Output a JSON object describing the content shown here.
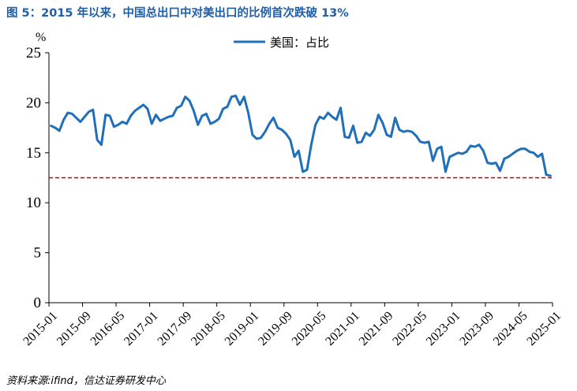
{
  "title": "图 5：2015 年以来，中国总出口中对美出口的比例首次跌破 13%",
  "source": "资料来源:ifind，信达证券研发中心",
  "chart_data": {
    "type": "line",
    "unit": "%",
    "ylim": [
      0,
      25
    ],
    "yticks": [
      "0",
      "5",
      "10",
      "15",
      "20",
      "25"
    ],
    "xticks": [
      "2015-01",
      "2015-09",
      "2016-05",
      "2017-01",
      "2017-09",
      "2018-05",
      "2019-01",
      "2019-09",
      "2020-05",
      "2021-01",
      "2021-09",
      "2022-05",
      "2023-01",
      "2023-09",
      "2024-05",
      "2025-01"
    ],
    "grid": false,
    "legend": {
      "position": "top-center"
    },
    "reference_line": {
      "y": 12.5,
      "color": "#c00000",
      "style": "dashed"
    },
    "series": [
      {
        "name": "美国：占比",
        "color": "#1f6fba",
        "start": "2015-01",
        "values": [
          17.7,
          17.5,
          17.2,
          18.3,
          19.0,
          18.9,
          18.5,
          18.1,
          18.6,
          19.1,
          19.3,
          16.3,
          15.8,
          18.8,
          18.7,
          17.6,
          17.8,
          18.1,
          17.9,
          18.7,
          19.2,
          19.5,
          19.8,
          19.4,
          17.9,
          18.8,
          18.2,
          18.4,
          18.6,
          18.7,
          19.5,
          19.7,
          20.6,
          20.2,
          19.2,
          17.8,
          18.7,
          18.9,
          17.9,
          18.1,
          18.4,
          19.4,
          19.6,
          20.6,
          20.7,
          19.8,
          20.6,
          19.0,
          16.8,
          16.4,
          16.5,
          17.1,
          17.9,
          18.5,
          17.5,
          17.3,
          16.9,
          16.3,
          14.6,
          15.2,
          13.1,
          13.3,
          15.8,
          17.8,
          18.6,
          18.4,
          19.0,
          18.6,
          18.3,
          19.5,
          16.6,
          16.5,
          17.7,
          16.0,
          16.1,
          17.0,
          16.7,
          17.3,
          18.8,
          18.0,
          16.8,
          16.6,
          18.5,
          17.3,
          17.1,
          17.2,
          17.1,
          16.7,
          16.1,
          16.0,
          16.1,
          14.2,
          15.4,
          15.6,
          13.1,
          14.6,
          14.8,
          15.0,
          14.9,
          15.1,
          15.7,
          15.6,
          15.8,
          15.2,
          14.0,
          13.9,
          14.0,
          13.2,
          14.4,
          14.6,
          14.9,
          15.2,
          15.4,
          15.4,
          15.1,
          15.0,
          14.6,
          14.9,
          12.8,
          12.7
        ]
      }
    ]
  }
}
